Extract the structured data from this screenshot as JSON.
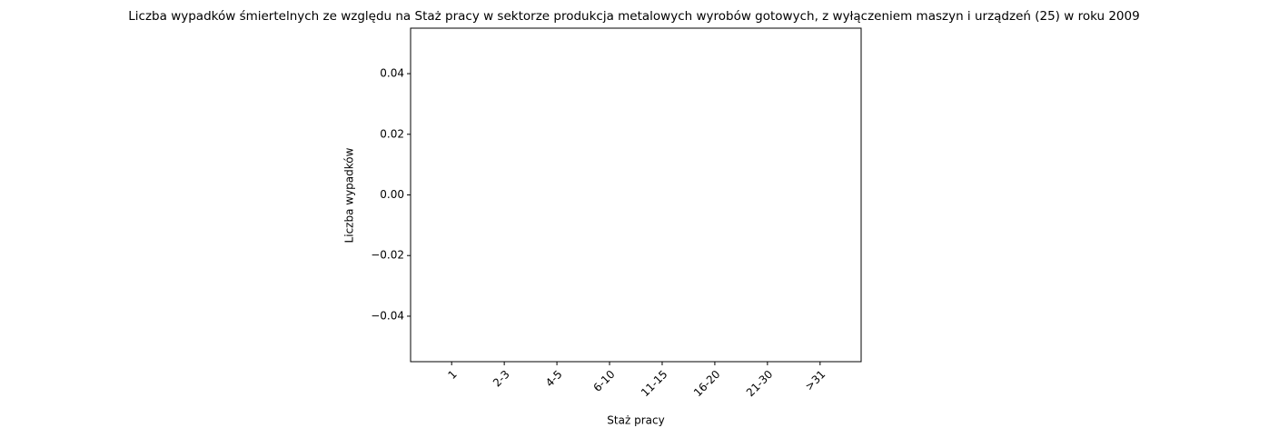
{
  "chart_data": {
    "type": "bar",
    "title": "Liczba wypadków śmiertelnych ze względu na Staż pracy w sektorze produkcja metalowych wyrobów gotowych, z wyłączeniem maszyn i urządzeń (25) w roku 2009",
    "xlabel": "Staż pracy",
    "ylabel": "Liczba wypadków",
    "categories": [
      "1",
      "2-3",
      "4-5",
      "6-10",
      "11-15",
      "16-20",
      "21-30",
      ">31"
    ],
    "values": [
      0,
      0,
      0,
      0,
      0,
      0,
      0,
      0
    ],
    "color": "#1f77b4",
    "ylim": [
      -0.055,
      0.055
    ],
    "yticks": [
      {
        "value": -0.04,
        "label": "−0.04"
      },
      {
        "value": -0.02,
        "label": "−0.02"
      },
      {
        "value": 0,
        "label": "0.00"
      },
      0.02,
      0.04
    ],
    "grid": false
  }
}
